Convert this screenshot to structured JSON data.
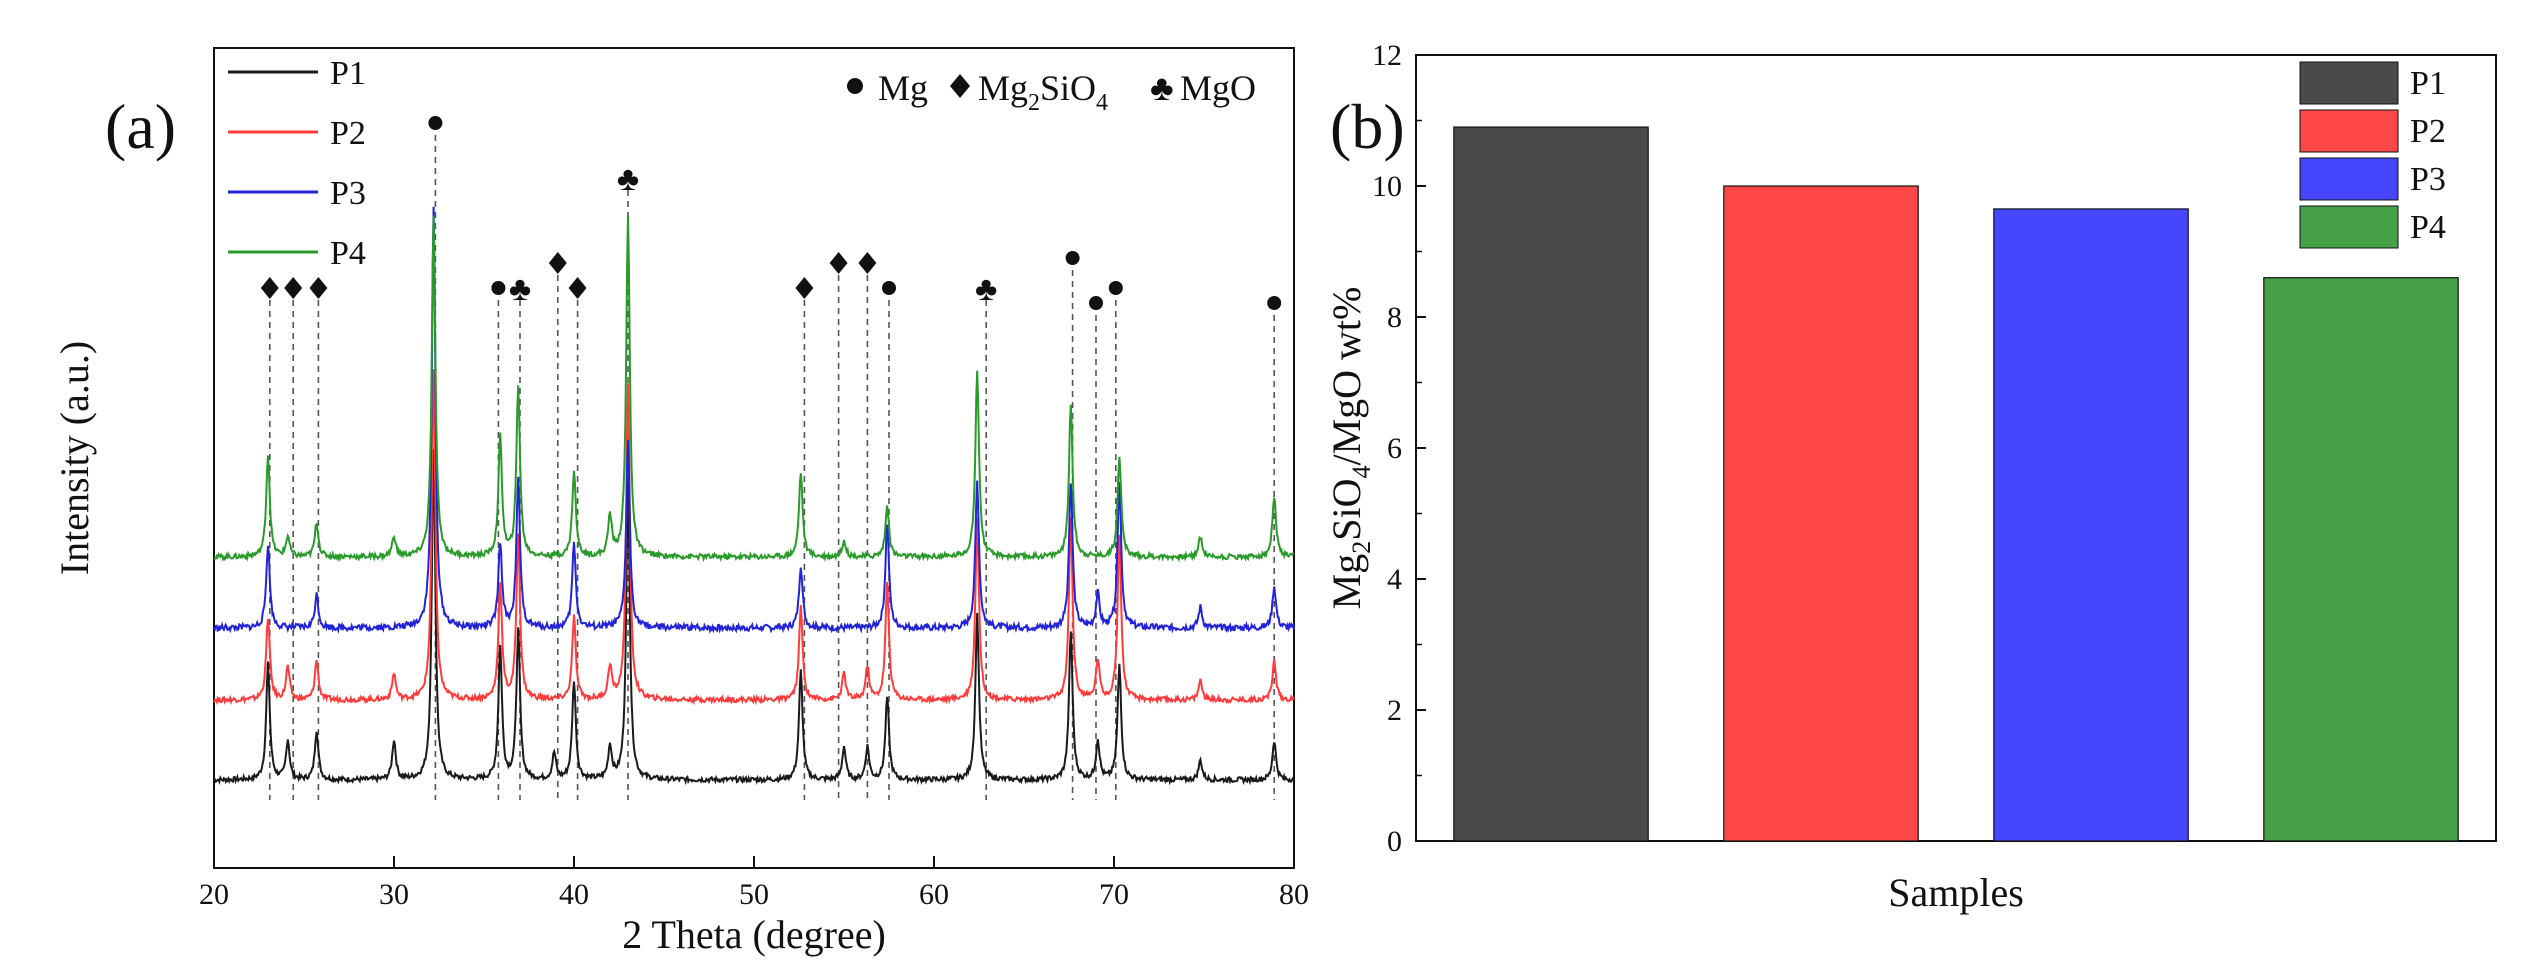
{
  "colors": {
    "P1": "#1a1a1a",
    "P2": "#ff3b3b",
    "P3": "#2323d8",
    "P4": "#2a9a2a",
    "barP1": "#4a4a4a",
    "barP2": "#ff4747",
    "barP3": "#4646ff",
    "barP4": "#46a046"
  },
  "chart_data": [
    {
      "panel_label": "(a)",
      "type": "line",
      "xlabel": "2 Theta (degree)",
      "ylabel": "Intensity (a.u.)",
      "xlim": [
        20,
        80
      ],
      "xticks": [
        "20",
        "30",
        "40",
        "50",
        "60",
        "70",
        "80"
      ],
      "legend": [
        "P1",
        "P2",
        "P3",
        "P4"
      ],
      "legend_position": "top-left",
      "phase_legend": {
        "mg_label": "Mg",
        "mg2sio4_parts": [
          "Mg",
          "2",
          "SiO",
          "4"
        ],
        "mgo_label": "MgO"
      },
      "series": [
        {
          "name": "P1",
          "peaks": [
            [
              23.0,
              0.35
            ],
            [
              24.1,
              0.12
            ],
            [
              25.7,
              0.15
            ],
            [
              30.0,
              0.12
            ],
            [
              32.2,
              1.0
            ],
            [
              35.9,
              0.4
            ],
            [
              36.9,
              0.45
            ],
            [
              38.9,
              0.08
            ],
            [
              40.0,
              0.3
            ],
            [
              42.0,
              0.1
            ],
            [
              43.0,
              0.9
            ],
            [
              52.6,
              0.33
            ],
            [
              55.0,
              0.1
            ],
            [
              56.3,
              0.1
            ],
            [
              57.4,
              0.25
            ],
            [
              62.4,
              0.5
            ],
            [
              67.6,
              0.45
            ],
            [
              69.1,
              0.12
            ],
            [
              70.3,
              0.35
            ],
            [
              74.8,
              0.06
            ],
            [
              78.9,
              0.12
            ]
          ]
        },
        {
          "name": "P2",
          "peaks": [
            [
              23.0,
              0.25
            ],
            [
              24.1,
              0.1
            ],
            [
              25.7,
              0.12
            ],
            [
              30.0,
              0.08
            ],
            [
              32.2,
              1.0
            ],
            [
              35.9,
              0.35
            ],
            [
              36.9,
              0.5
            ],
            [
              40.0,
              0.25
            ],
            [
              42.0,
              0.1
            ],
            [
              43.0,
              0.95
            ],
            [
              52.6,
              0.28
            ],
            [
              55.0,
              0.08
            ],
            [
              56.3,
              0.1
            ],
            [
              57.4,
              0.35
            ],
            [
              62.4,
              0.55
            ],
            [
              67.6,
              0.55
            ],
            [
              69.1,
              0.12
            ],
            [
              70.3,
              0.5
            ],
            [
              74.8,
              0.06
            ],
            [
              78.9,
              0.12
            ]
          ]
        },
        {
          "name": "P3",
          "peaks": [
            [
              23.0,
              0.2
            ],
            [
              25.7,
              0.08
            ],
            [
              32.2,
              1.0
            ],
            [
              35.9,
              0.2
            ],
            [
              36.9,
              0.35
            ],
            [
              40.0,
              0.2
            ],
            [
              43.0,
              0.45
            ],
            [
              52.6,
              0.15
            ],
            [
              57.4,
              0.25
            ],
            [
              62.4,
              0.35
            ],
            [
              67.6,
              0.35
            ],
            [
              69.1,
              0.08
            ],
            [
              70.3,
              0.35
            ],
            [
              74.8,
              0.05
            ],
            [
              78.9,
              0.1
            ]
          ]
        },
        {
          "name": "P4",
          "peaks": [
            [
              23.0,
              0.3
            ],
            [
              24.1,
              0.06
            ],
            [
              25.7,
              0.1
            ],
            [
              30.0,
              0.06
            ],
            [
              32.2,
              1.0
            ],
            [
              35.9,
              0.35
            ],
            [
              36.9,
              0.5
            ],
            [
              40.0,
              0.25
            ],
            [
              42.0,
              0.12
            ],
            [
              43.0,
              1.0
            ],
            [
              52.6,
              0.25
            ],
            [
              55.0,
              0.05
            ],
            [
              57.4,
              0.15
            ],
            [
              62.4,
              0.55
            ],
            [
              67.6,
              0.45
            ],
            [
              70.3,
              0.3
            ],
            [
              74.8,
              0.06
            ],
            [
              78.9,
              0.18
            ]
          ]
        }
      ],
      "reference_lines": [
        {
          "x": 23.1,
          "phase": "Mg2SiO4"
        },
        {
          "x": 24.4,
          "phase": "Mg2SiO4"
        },
        {
          "x": 25.8,
          "phase": "Mg2SiO4"
        },
        {
          "x": 32.3,
          "phase": "Mg"
        },
        {
          "x": 35.8,
          "phase": "Mg"
        },
        {
          "x": 37.0,
          "phase": "MgO"
        },
        {
          "x": 39.1,
          "phase": "Mg2SiO4"
        },
        {
          "x": 40.2,
          "phase": "Mg2SiO4"
        },
        {
          "x": 43.0,
          "phase": "MgO"
        },
        {
          "x": 52.8,
          "phase": "Mg2SiO4"
        },
        {
          "x": 54.7,
          "phase": "Mg2SiO4"
        },
        {
          "x": 56.3,
          "phase": "Mg2SiO4"
        },
        {
          "x": 57.5,
          "phase": "Mg"
        },
        {
          "x": 62.9,
          "phase": "MgO"
        },
        {
          "x": 67.7,
          "phase": "Mg"
        },
        {
          "x": 69.0,
          "phase": "Mg"
        },
        {
          "x": 70.1,
          "phase": "Mg"
        },
        {
          "x": 78.9,
          "phase": "Mg"
        }
      ]
    },
    {
      "panel_label": "(b)",
      "type": "bar",
      "xlabel": "Samples",
      "ylabel_parts": [
        "Mg",
        "2",
        "SiO",
        "4",
        "/MgO wt%"
      ],
      "ylim": [
        0,
        12
      ],
      "yticks": [
        "0",
        "2",
        "4",
        "6",
        "8",
        "10",
        "12"
      ],
      "categories": [
        "P1",
        "P2",
        "P3",
        "P4"
      ],
      "values": [
        10.9,
        10.0,
        9.65,
        8.6
      ],
      "legend": [
        "P1",
        "P2",
        "P3",
        "P4"
      ],
      "legend_position": "top-right"
    }
  ]
}
